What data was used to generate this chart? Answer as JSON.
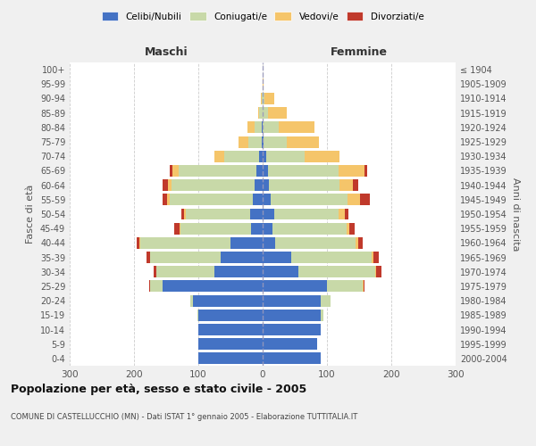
{
  "age_groups": [
    "0-4",
    "5-9",
    "10-14",
    "15-19",
    "20-24",
    "25-29",
    "30-34",
    "35-39",
    "40-44",
    "45-49",
    "50-54",
    "55-59",
    "60-64",
    "65-69",
    "70-74",
    "75-79",
    "80-84",
    "85-89",
    "90-94",
    "95-99",
    "100+"
  ],
  "birth_years": [
    "2000-2004",
    "1995-1999",
    "1990-1994",
    "1985-1989",
    "1980-1984",
    "1975-1979",
    "1970-1974",
    "1965-1969",
    "1960-1964",
    "1955-1959",
    "1950-1954",
    "1945-1949",
    "1940-1944",
    "1935-1939",
    "1930-1934",
    "1925-1929",
    "1920-1924",
    "1915-1919",
    "1910-1914",
    "1905-1909",
    "≤ 1904"
  ],
  "maschi": {
    "celibi": [
      100,
      100,
      100,
      100,
      108,
      155,
      75,
      65,
      50,
      18,
      20,
      15,
      12,
      10,
      5,
      2,
      1,
      0,
      0,
      0,
      0
    ],
    "coniugati": [
      0,
      0,
      0,
      2,
      5,
      20,
      90,
      110,
      140,
      110,
      100,
      130,
      130,
      120,
      55,
      20,
      12,
      5,
      2,
      0,
      0
    ],
    "vedovi": [
      0,
      0,
      0,
      0,
      0,
      0,
      0,
      0,
      1,
      1,
      2,
      3,
      5,
      10,
      15,
      15,
      10,
      2,
      1,
      0,
      0
    ],
    "divorziati": [
      0,
      0,
      0,
      0,
      0,
      2,
      5,
      5,
      5,
      8,
      5,
      8,
      8,
      5,
      0,
      0,
      0,
      0,
      0,
      0,
      0
    ]
  },
  "femmine": {
    "nubili": [
      90,
      85,
      90,
      90,
      90,
      100,
      55,
      45,
      20,
      15,
      18,
      12,
      10,
      8,
      5,
      2,
      0,
      0,
      0,
      0,
      0
    ],
    "coniugate": [
      0,
      0,
      0,
      5,
      15,
      55,
      120,
      125,
      125,
      115,
      100,
      120,
      110,
      110,
      60,
      35,
      25,
      8,
      3,
      0,
      0
    ],
    "vedove": [
      0,
      0,
      0,
      0,
      0,
      2,
      2,
      2,
      3,
      5,
      10,
      20,
      20,
      40,
      55,
      50,
      55,
      30,
      15,
      1,
      0
    ],
    "divorziate": [
      0,
      0,
      0,
      0,
      0,
      2,
      8,
      8,
      8,
      8,
      5,
      15,
      8,
      5,
      0,
      0,
      0,
      0,
      0,
      0,
      0
    ]
  },
  "colors": {
    "celibi_nubili": "#4472c4",
    "coniugati_e": "#c8d9a8",
    "vedovi_e": "#f5c56a",
    "divorziati_e": "#c0392b"
  },
  "title": "Popolazione per età, sesso e stato civile - 2005",
  "subtitle": "COMUNE DI CASTELLUCCHIO (MN) - Dati ISTAT 1° gennaio 2005 - Elaborazione TUTTITALIA.IT",
  "xlabel_left": "Maschi",
  "xlabel_right": "Femmine",
  "ylabel_left": "Fasce di età",
  "ylabel_right": "Anni di nascita",
  "xlim": 300,
  "bg_color": "#f0f0f0",
  "plot_bg_color": "#ffffff",
  "legend_labels": [
    "Celibi/Nubili",
    "Coniugati/e",
    "Vedovi/e",
    "Divorziati/e"
  ]
}
